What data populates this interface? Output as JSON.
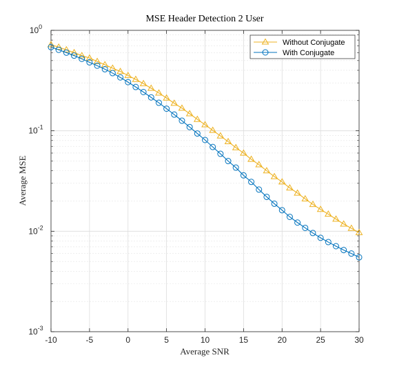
{
  "chart_data": {
    "type": "line",
    "title": "MSE Header Detection 2 User",
    "xlabel": "Average SNR",
    "ylabel": "Average MSE",
    "xlim": [
      -10,
      30
    ],
    "ylim": [
      0.001,
      1
    ],
    "yscale": "log",
    "grid": true,
    "minor_grid": true,
    "legend_position": "top-right",
    "x_ticks": [
      -10,
      -5,
      0,
      5,
      10,
      15,
      20,
      25,
      30
    ],
    "x_tick_labels": [
      "-10",
      "-5",
      "0",
      "5",
      "10",
      "15",
      "20",
      "25",
      "30"
    ],
    "y_ticks": [
      0.001,
      0.01,
      0.1,
      1
    ],
    "y_tick_labels": [
      {
        "base": "10",
        "exp": "-3"
      },
      {
        "base": "10",
        "exp": "-2"
      },
      {
        "base": "10",
        "exp": "-1"
      },
      {
        "base": "10",
        "exp": "0"
      }
    ],
    "x": [
      -10,
      -9,
      -8,
      -7,
      -6,
      -5,
      -4,
      -3,
      -2,
      -1,
      0,
      1,
      2,
      3,
      4,
      5,
      6,
      7,
      8,
      9,
      10,
      11,
      12,
      13,
      14,
      15,
      16,
      17,
      18,
      19,
      20,
      21,
      22,
      23,
      24,
      25,
      26,
      27,
      28,
      29,
      30
    ],
    "series": [
      {
        "name": "Without Conjugate",
        "color": "#EDB120",
        "marker": "triangle",
        "values": [
          0.72,
          0.68,
          0.64,
          0.6,
          0.56,
          0.53,
          0.49,
          0.455,
          0.42,
          0.39,
          0.355,
          0.325,
          0.295,
          0.265,
          0.238,
          0.212,
          0.188,
          0.168,
          0.148,
          0.13,
          0.115,
          0.101,
          0.089,
          0.078,
          0.068,
          0.06,
          0.052,
          0.046,
          0.04,
          0.035,
          0.031,
          0.027,
          0.024,
          0.021,
          0.0185,
          0.0165,
          0.0148,
          0.0132,
          0.0118,
          0.0107,
          0.0097
        ]
      },
      {
        "name": "With Conjugate",
        "color": "#0072BD",
        "marker": "circle",
        "values": [
          0.68,
          0.64,
          0.6,
          0.56,
          0.52,
          0.48,
          0.445,
          0.41,
          0.375,
          0.34,
          0.305,
          0.273,
          0.243,
          0.215,
          0.19,
          0.166,
          0.145,
          0.126,
          0.109,
          0.094,
          0.081,
          0.069,
          0.059,
          0.05,
          0.043,
          0.036,
          0.031,
          0.026,
          0.022,
          0.0188,
          0.0162,
          0.0139,
          0.0122,
          0.0108,
          0.0096,
          0.0086,
          0.0078,
          0.0071,
          0.0065,
          0.006,
          0.0055
        ]
      }
    ]
  }
}
